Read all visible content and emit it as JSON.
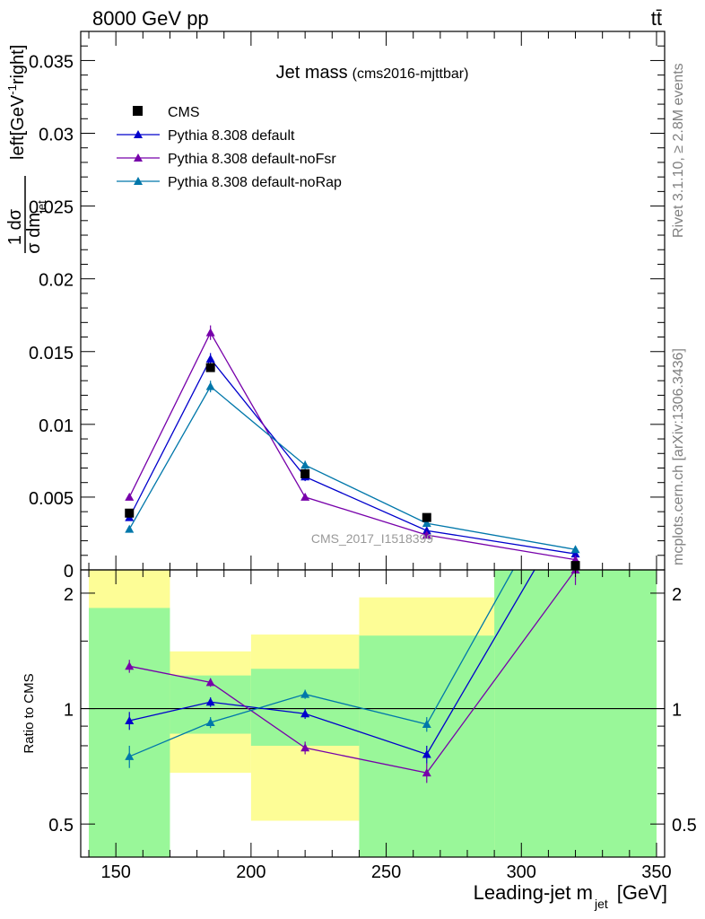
{
  "header": {
    "left": "8000 GeV pp",
    "right": "tt̄"
  },
  "side_text": {
    "rivet": "Rivet 3.1.10, ≥ 2.8M events",
    "mcplots": "mcplots.cern.ch [arXiv:1306.3436]"
  },
  "chart_data": {
    "type": "line",
    "title": "Jet mass",
    "subtitle": "(cms2016-mjttbar)",
    "watermark": "CMS_2017_I1518399",
    "xlabel": "Leading-jet m",
    "xlabel_sub": "jet",
    "xlabel_unit": "[GeV]",
    "ylabel_frac_num": "1 dσ",
    "ylabel_frac_den": "σ dm",
    "ylabel_den_sub": "jet",
    "ylabel_unit": "left[GeV",
    "ylabel_unit_sup": "-1",
    "ylabel_unit_tail": "right]",
    "ratio_ylabel": "Ratio to CMS",
    "xlim": [
      137,
      353
    ],
    "ylim": [
      0,
      0.037
    ],
    "ratio_ylim": [
      0.41,
      2.3
    ],
    "ratio_log": true,
    "x_ticks": [
      150,
      200,
      250,
      300,
      350
    ],
    "y_ticks": [
      0,
      0.005,
      0.01,
      0.015,
      0.02,
      0.025,
      0.03,
      0.035
    ],
    "y_tick_labels": [
      "0",
      "0.005",
      "0.01",
      "0.015",
      "0.02",
      "0.025",
      "0.03",
      "0.035"
    ],
    "ratio_ticks": [
      0.5,
      1,
      2
    ],
    "ratio_tick_labels": [
      "0.5",
      "1",
      "2"
    ],
    "bins": [
      [
        140,
        170
      ],
      [
        170,
        200
      ],
      [
        200,
        240
      ],
      [
        240,
        290
      ],
      [
        290,
        350
      ]
    ],
    "x": [
      155,
      185,
      220,
      265,
      320
    ],
    "colors": {
      "band_green": "#99f799",
      "band_yellow": "#fdfd96",
      "data": "#000000"
    },
    "data": {
      "name": "CMS",
      "values": [
        0.0039,
        0.0139,
        0.0066,
        0.0036,
        0.0003
      ],
      "band_green": [
        [
          0.17,
          1.83
        ],
        [
          0.86,
          1.22
        ],
        [
          0.8,
          1.27
        ],
        [
          0.41,
          1.55
        ],
        [
          0.41,
          2.3
        ]
      ],
      "band_yellow": [
        [
          0.41,
          2.3
        ],
        [
          0.68,
          1.41
        ],
        [
          0.51,
          1.56
        ],
        [
          0.54,
          1.95
        ],
        [
          0.41,
          2.3
        ]
      ]
    },
    "series": [
      {
        "name": "Pythia 8.308 default",
        "color": "#0000cc",
        "values": [
          0.0036,
          0.0145,
          0.0064,
          0.0027,
          0.0011
        ],
        "errors": [
          0.0002,
          0.0004,
          0.0003,
          0.0002,
          0.0001
        ],
        "ratio": [
          0.93,
          1.04,
          0.97,
          0.76,
          3.5
        ],
        "ratio_err": [
          0.05,
          0.03,
          0.03,
          0.04,
          0.2
        ]
      },
      {
        "name": "Pythia 8.308 default-noFsr",
        "color": "#7700aa",
        "values": [
          0.005,
          0.0163,
          0.005,
          0.0024,
          0.0007
        ],
        "errors": [
          0.0002,
          0.0005,
          0.0002,
          0.0002,
          0.0001
        ],
        "ratio": [
          1.29,
          1.17,
          0.79,
          0.68,
          2.3
        ],
        "ratio_err": [
          0.05,
          0.03,
          0.03,
          0.04,
          0.2
        ]
      },
      {
        "name": "Pythia 8.308 default-noRap",
        "color": "#0077aa",
        "values": [
          0.0028,
          0.0126,
          0.0072,
          0.0032,
          0.0014
        ],
        "errors": [
          0.0002,
          0.0004,
          0.0003,
          0.0002,
          0.0001
        ],
        "ratio": [
          0.75,
          0.92,
          1.09,
          0.91,
          4.5
        ],
        "ratio_err": [
          0.05,
          0.03,
          0.03,
          0.04,
          0.2
        ]
      }
    ]
  }
}
